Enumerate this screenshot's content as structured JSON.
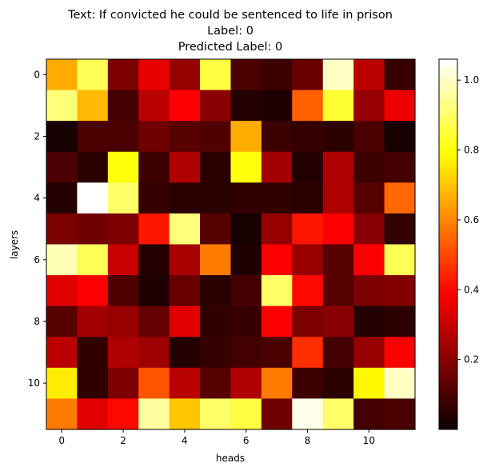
{
  "chart_data": {
    "type": "heatmap",
    "title_lines": [
      "Text: If convicted he could be sentenced to life in prison",
      "Label: 0",
      "Predicted Label: 0"
    ],
    "xlabel": "heads",
    "ylabel": "layers",
    "x_ticks": [
      0,
      2,
      4,
      6,
      8,
      10
    ],
    "y_ticks": [
      0,
      2,
      4,
      6,
      8,
      10
    ],
    "colormap": "hot",
    "colorbar": {
      "vmin": 0.0,
      "vmax": 1.06,
      "ticks": [
        0.2,
        0.4,
        0.6,
        0.8,
        1.0
      ],
      "tick_labels": [
        "0.2",
        "0.4",
        "0.6",
        "0.8",
        "1.0"
      ]
    },
    "values": [
      [
        0.66,
        0.88,
        0.18,
        0.35,
        0.22,
        0.86,
        0.1,
        0.08,
        0.15,
        1.0,
        0.28,
        0.07
      ],
      [
        0.92,
        0.68,
        0.09,
        0.28,
        0.38,
        0.2,
        0.04,
        0.03,
        0.54,
        0.84,
        0.22,
        0.36
      ],
      [
        0.02,
        0.1,
        0.1,
        0.16,
        0.12,
        0.11,
        0.66,
        0.08,
        0.07,
        0.05,
        0.1,
        0.02
      ],
      [
        0.1,
        0.05,
        0.8,
        0.08,
        0.26,
        0.05,
        0.8,
        0.24,
        0.04,
        0.26,
        0.08,
        0.09
      ],
      [
        0.04,
        1.06,
        0.9,
        0.07,
        0.05,
        0.05,
        0.06,
        0.06,
        0.05,
        0.26,
        0.12,
        0.55
      ],
      [
        0.18,
        0.16,
        0.18,
        0.42,
        0.92,
        0.12,
        0.02,
        0.22,
        0.42,
        0.38,
        0.2,
        0.06
      ],
      [
        0.98,
        0.88,
        0.3,
        0.04,
        0.25,
        0.58,
        0.03,
        0.38,
        0.22,
        0.12,
        0.38,
        0.88
      ],
      [
        0.34,
        0.38,
        0.11,
        0.03,
        0.15,
        0.05,
        0.09,
        0.9,
        0.4,
        0.12,
        0.18,
        0.19
      ],
      [
        0.12,
        0.24,
        0.22,
        0.14,
        0.34,
        0.06,
        0.07,
        0.38,
        0.18,
        0.2,
        0.04,
        0.05
      ],
      [
        0.28,
        0.06,
        0.26,
        0.23,
        0.04,
        0.07,
        0.09,
        0.1,
        0.46,
        0.09,
        0.22,
        0.38
      ],
      [
        0.76,
        0.06,
        0.18,
        0.52,
        0.28,
        0.12,
        0.26,
        0.58,
        0.08,
        0.05,
        0.78,
        1.0
      ],
      [
        0.58,
        0.34,
        0.4,
        0.96,
        0.7,
        0.9,
        0.86,
        0.16,
        1.04,
        0.9,
        0.09,
        0.1
      ]
    ]
  }
}
